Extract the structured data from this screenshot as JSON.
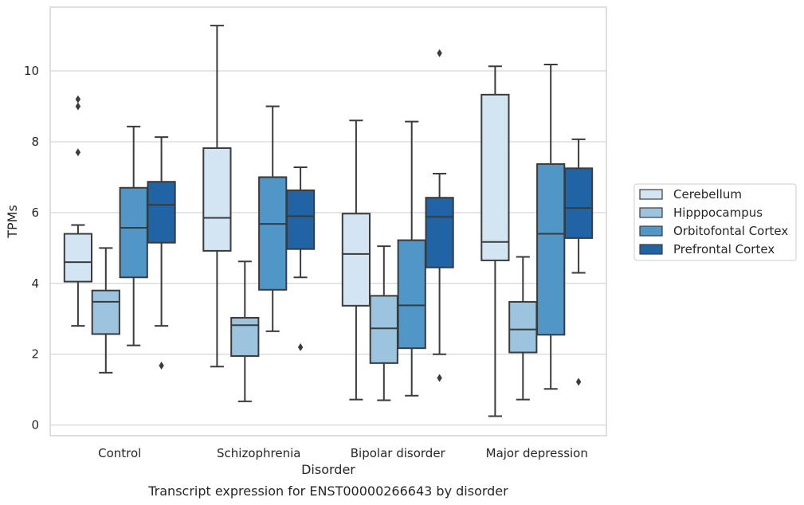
{
  "chart_data": {
    "type": "box",
    "caption": "Transcript expression for ENST00000266643 by disorder",
    "xlabel": "Disorder",
    "ylabel": "TPMs",
    "ylim": [
      -0.3,
      11.8
    ],
    "yticks": [
      0,
      2,
      4,
      6,
      8,
      10
    ],
    "grid": "horizontal",
    "legend_position": "right",
    "categories": [
      "Control",
      "Schizophrenia",
      "Bipolar disorder",
      "Major depression"
    ],
    "series": [
      {
        "name": "Cerebellum",
        "color": "#d3e4f3",
        "boxes": [
          {
            "whislo": 2.8,
            "q1": 4.05,
            "med": 4.6,
            "q3": 5.4,
            "whishi": 5.65,
            "fliers": [
              7.7,
              9.0,
              9.2
            ]
          },
          {
            "whislo": 1.65,
            "q1": 4.92,
            "med": 5.85,
            "q3": 7.82,
            "whishi": 11.28,
            "fliers": []
          },
          {
            "whislo": 0.72,
            "q1": 3.37,
            "med": 4.83,
            "q3": 5.97,
            "whishi": 8.6,
            "fliers": []
          },
          {
            "whislo": 0.25,
            "q1": 4.65,
            "med": 5.17,
            "q3": 9.33,
            "whishi": 10.13,
            "fliers": []
          }
        ]
      },
      {
        "name": "Hipppocampus",
        "color": "#9cc4df",
        "boxes": [
          {
            "whislo": 1.48,
            "q1": 2.57,
            "med": 3.48,
            "q3": 3.8,
            "whishi": 5.0,
            "fliers": []
          },
          {
            "whislo": 0.67,
            "q1": 1.95,
            "med": 2.82,
            "q3": 3.03,
            "whishi": 4.62,
            "fliers": []
          },
          {
            "whislo": 0.7,
            "q1": 1.75,
            "med": 2.73,
            "q3": 3.65,
            "whishi": 5.05,
            "fliers": []
          },
          {
            "whislo": 0.72,
            "q1": 2.05,
            "med": 2.7,
            "q3": 3.48,
            "whishi": 4.75,
            "fliers": []
          }
        ]
      },
      {
        "name": "Orbitofontal Cortex",
        "color": "#5096c6",
        "boxes": [
          {
            "whislo": 2.25,
            "q1": 4.17,
            "med": 5.57,
            "q3": 6.7,
            "whishi": 8.43,
            "fliers": []
          },
          {
            "whislo": 2.65,
            "q1": 3.82,
            "med": 5.68,
            "q3": 7.0,
            "whishi": 9.0,
            "fliers": []
          },
          {
            "whislo": 0.83,
            "q1": 2.17,
            "med": 3.38,
            "q3": 5.22,
            "whishi": 8.57,
            "fliers": []
          },
          {
            "whislo": 1.02,
            "q1": 2.55,
            "med": 5.4,
            "q3": 7.37,
            "whishi": 10.18,
            "fliers": []
          }
        ]
      },
      {
        "name": "Prefrontal Cortex",
        "color": "#2064a6",
        "boxes": [
          {
            "whislo": 2.8,
            "q1": 5.15,
            "med": 6.22,
            "q3": 6.87,
            "whishi": 8.13,
            "fliers": [
              1.68
            ]
          },
          {
            "whislo": 4.17,
            "q1": 4.97,
            "med": 5.9,
            "q3": 6.63,
            "whishi": 7.28,
            "fliers": [
              2.2
            ]
          },
          {
            "whislo": 2.0,
            "q1": 4.45,
            "med": 5.88,
            "q3": 6.42,
            "whishi": 7.1,
            "fliers": [
              1.33,
              10.5
            ]
          },
          {
            "whislo": 4.3,
            "q1": 5.28,
            "med": 6.13,
            "q3": 7.25,
            "whishi": 8.07,
            "fliers": [
              1.22
            ]
          }
        ]
      }
    ]
  }
}
